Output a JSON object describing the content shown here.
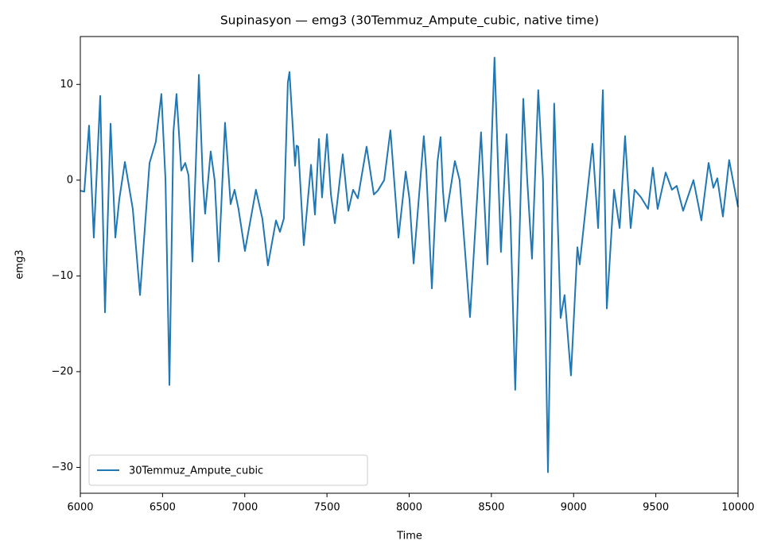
{
  "chart_data": {
    "type": "line",
    "title": "Supinasyon — emg3 (30Temmuz_Ampute_cubic, native time)",
    "x_label": "Time",
    "y_label": "emg3",
    "xlim": [
      6000,
      10000
    ],
    "ylim": [
      -32.7,
      15.0
    ],
    "xticks": [
      6000,
      6500,
      7000,
      7500,
      8000,
      8500,
      9000,
      9500,
      10000
    ],
    "yticks": [
      {
        "value": -30,
        "label": "−30"
      },
      {
        "value": -20,
        "label": "−20"
      },
      {
        "value": -10,
        "label": "−10"
      },
      0,
      10
    ],
    "grid": false,
    "legend": "lower left",
    "x": [
      6000,
      6024,
      6053,
      6082,
      6121,
      6150,
      6184,
      6213,
      6237,
      6271,
      6319,
      6363,
      6421,
      6459,
      6493,
      6518,
      6542,
      6566,
      6585,
      6614,
      6638,
      6658,
      6682,
      6721,
      6745,
      6759,
      6793,
      6817,
      6842,
      6880,
      6914,
      6938,
      6962,
      7001,
      7068,
      7107,
      7141,
      7190,
      7214,
      7238,
      7262,
      7272,
      7306,
      7315,
      7325,
      7359,
      7403,
      7427,
      7451,
      7470,
      7500,
      7524,
      7548,
      7596,
      7630,
      7659,
      7688,
      7741,
      7785,
      7809,
      7848,
      7886,
      7935,
      7979,
      8002,
      8027,
      8089,
      8104,
      8138,
      8172,
      8191,
      8205,
      8220,
      8278,
      8307,
      8370,
      8437,
      8476,
      8519,
      8543,
      8558,
      8592,
      8616,
      8645,
      8694,
      8718,
      8747,
      8785,
      8814,
      8844,
      8882,
      8921,
      8945,
      8984,
      9023,
      9037,
      9115,
      9149,
      9178,
      9202,
      9246,
      9280,
      9313,
      9347,
      9371,
      9410,
      9453,
      9482,
      9511,
      9560,
      9598,
      9627,
      9666,
      9729,
      9777,
      9821,
      9850,
      9874,
      9908,
      9946,
      10000
    ],
    "series": [
      {
        "name": "30Temmuz_Ampute_cubic",
        "color": "#1f77b4",
        "values": [
          -1.1,
          -1.2,
          5.7,
          -6,
          8.8,
          -13.8,
          5.9,
          -6,
          -2,
          1.9,
          -3,
          -12,
          1.8,
          4,
          9,
          0,
          -21.4,
          5,
          9,
          1,
          1.8,
          0.5,
          -8.5,
          11,
          0,
          -3.5,
          3,
          0,
          -8.5,
          6,
          -2.5,
          -1,
          -3,
          -7.4,
          -1,
          -4,
          -8.9,
          -4.2,
          -5.4,
          -4,
          10.2,
          11.3,
          1.5,
          3.6,
          3.5,
          -6.8,
          1.6,
          -3.6,
          4.3,
          -1.8,
          4.8,
          -1.5,
          -4.5,
          2.7,
          -3.2,
          -1,
          -1.9,
          3.5,
          -1.5,
          -1.1,
          0,
          5.2,
          -6,
          0.9,
          -2,
          -8.7,
          4.6,
          1,
          -11.3,
          1.9,
          4.5,
          -1,
          -4.3,
          2,
          0,
          -14.3,
          5,
          -8.8,
          12.8,
          0,
          -7.5,
          4.8,
          -4,
          -21.9,
          8.5,
          0,
          -8.2,
          9.4,
          0,
          -30.5,
          8,
          -14.4,
          -12,
          -20.4,
          -7,
          -8.8,
          3.8,
          -5,
          9.4,
          -13.4,
          -1,
          -5,
          4.6,
          -5,
          -1,
          -1.8,
          -3,
          1.3,
          -3,
          0.8,
          -1,
          -0.6,
          -3.2,
          0,
          -4.2,
          1.8,
          -0.8,
          0.2,
          -3.8,
          2.1,
          -2.8
        ]
      }
    ]
  }
}
